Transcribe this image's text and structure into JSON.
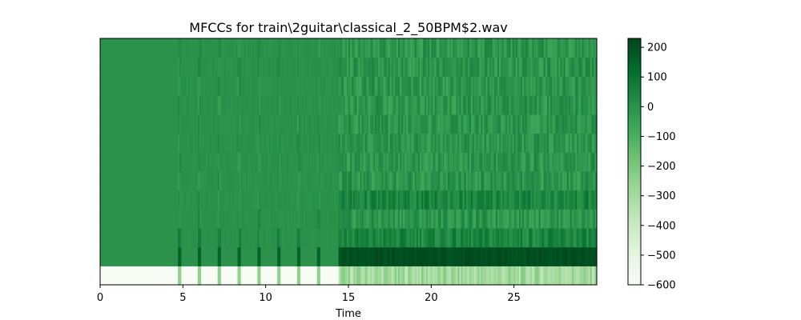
{
  "chart_data": {
    "type": "heatmap",
    "title": "MFCCs for train\\2guitar\\classical_2_50BPM$2.wav",
    "xlabel": "Time",
    "ylabel": "",
    "xlim": [
      0,
      30
    ],
    "x_ticks": [
      0,
      5,
      10,
      15,
      20,
      25
    ],
    "x_tick_labels": [
      "0",
      "5",
      "10",
      "15",
      "20",
      "25"
    ],
    "n_coefficients": 13,
    "colormap": "Greens",
    "color_range": [
      -600,
      230
    ],
    "colorbar_ticks": [
      200,
      100,
      0,
      -100,
      -200,
      -300,
      -400,
      -500,
      -600
    ],
    "colorbar_tick_labels": [
      "200",
      "100",
      "0",
      "−100",
      "−200",
      "−300",
      "−400",
      "−500",
      "−600"
    ],
    "onset_times": [
      4.8,
      6.0,
      7.2,
      8.4,
      9.6,
      10.8,
      12.0,
      13.2
    ],
    "sustain_start": 14.4,
    "approx_values": {
      "coef0_silence": -600,
      "coef0_onset": -250,
      "coef0_sustain_range": [
        -380,
        -220
      ],
      "coef1_sustain_range": [
        180,
        225
      ],
      "higher_coef_silence": 0,
      "higher_coef_range": [
        -120,
        100
      ]
    }
  },
  "colors": {
    "cmap_stops": [
      "#f7fcf5",
      "#e5f5e0",
      "#c7e9c0",
      "#a1d99b",
      "#74c476",
      "#41ab5d",
      "#238b45",
      "#006d2c",
      "#00441b"
    ]
  }
}
